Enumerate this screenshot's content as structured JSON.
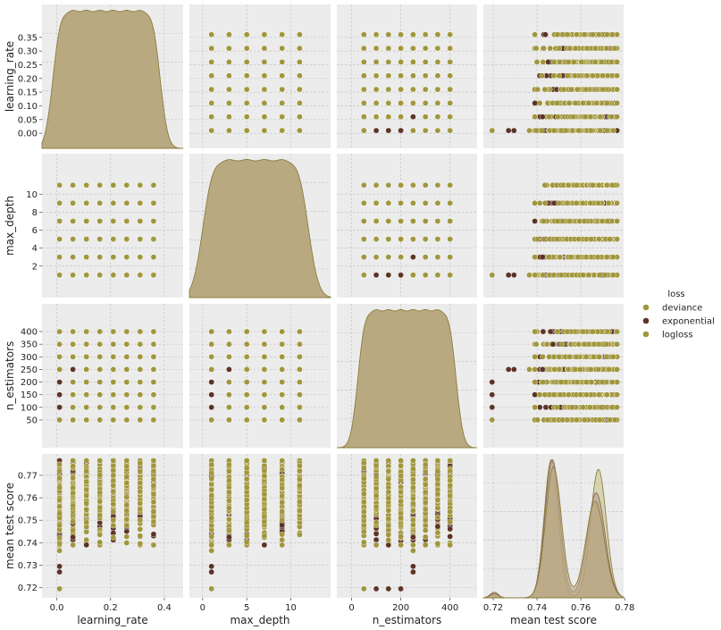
{
  "chart_data": {
    "type": "scatter",
    "kind": "pairplot",
    "variables": [
      {
        "key": "learning_rate",
        "label": "learning_rate",
        "range": [
          -0.055,
          0.47
        ],
        "ticks": [
          0.0,
          0.05,
          0.1,
          0.15,
          0.2,
          0.25,
          0.3,
          0.35
        ],
        "tick_labels_y": [
          "0.00",
          "0.05",
          "0.10",
          "0.15",
          "0.20",
          "0.25",
          "0.30",
          "0.35"
        ],
        "ticks_x": [
          0.0,
          0.2,
          0.4
        ],
        "tick_labels_x": [
          "0.0",
          "0.2",
          "0.4"
        ],
        "values": [
          0.01,
          0.06,
          0.11,
          0.16,
          0.21,
          0.26,
          0.31,
          0.36
        ]
      },
      {
        "key": "max_depth",
        "label": "max_depth",
        "range": [
          -1.5,
          14.5
        ],
        "ticks": [
          2,
          4,
          6,
          8,
          10
        ],
        "tick_labels_y": [
          "2",
          "4",
          "6",
          "8",
          "10"
        ],
        "ticks_x": [
          0,
          5,
          10
        ],
        "tick_labels_x": [
          "0",
          "5",
          "10"
        ],
        "values": [
          1,
          3,
          5,
          7,
          9,
          11
        ]
      },
      {
        "key": "n_estimators",
        "label": "n_estimators",
        "range": [
          -60,
          510
        ],
        "ticks": [
          50,
          100,
          150,
          200,
          250,
          300,
          350,
          400
        ],
        "tick_labels_y": [
          "50",
          "100",
          "150",
          "200",
          "250",
          "300",
          "350",
          "400"
        ],
        "ticks_x": [
          0,
          200,
          400
        ],
        "tick_labels_x": [
          "0",
          "200",
          "400"
        ],
        "values": [
          50,
          100,
          150,
          200,
          250,
          300,
          350,
          400
        ]
      },
      {
        "key": "mean_test_score",
        "label": "mean test score",
        "range": [
          0.7155,
          0.7795
        ],
        "ticks": [
          0.72,
          0.73,
          0.74,
          0.75,
          0.76,
          0.77
        ],
        "tick_labels_y": [
          "0.72",
          "0.73",
          "0.74",
          "0.75",
          "0.76",
          "0.77"
        ],
        "ticks_x": [
          0.72,
          0.74,
          0.76,
          0.78
        ],
        "tick_labels_x": [
          "0.72",
          "0.74",
          "0.76",
          "0.78"
        ]
      }
    ],
    "hue": {
      "title": "loss",
      "levels": [
        {
          "name": "deviance",
          "color": "#a0963c"
        },
        {
          "name": "exponential",
          "color": "#5c3427"
        },
        {
          "name": "logloss",
          "color": "#a0963c"
        }
      ],
      "cloud_color": "#e8d8d0"
    },
    "kde_colors": {
      "fill": "#b5a57b",
      "stroke": "#8d7d3c",
      "alt_fill": "#cfcba0"
    },
    "score_distribution": {
      "min": 0.7195,
      "max": 0.7765,
      "modes": [
        0.747,
        0.768
      ],
      "low_outliers": [
        {
          "loss": "exponential",
          "learning_rate": 0.01,
          "max_depth": 1,
          "n_estimators": 100,
          "score": 0.7195
        },
        {
          "loss": "exponential",
          "learning_rate": 0.01,
          "max_depth": 1,
          "n_estimators": 150,
          "score": 0.7195
        },
        {
          "loss": "exponential",
          "learning_rate": 0.01,
          "max_depth": 1,
          "n_estimators": 200,
          "score": 0.7195
        },
        {
          "loss": "deviance",
          "learning_rate": 0.01,
          "max_depth": 1,
          "n_estimators": 50,
          "score": 0.7195
        },
        {
          "loss": "exponential",
          "learning_rate": 0.01,
          "max_depth": 1,
          "n_estimators": 250,
          "score": 0.7295
        },
        {
          "loss": "exponential",
          "learning_rate": 0.01,
          "max_depth": 1,
          "n_estimators": 250,
          "score": 0.727
        },
        {
          "loss": "deviance",
          "learning_rate": 0.01,
          "max_depth": 1,
          "n_estimators": 250,
          "score": 0.7365
        },
        {
          "loss": "exponential",
          "learning_rate": 0.06,
          "max_depth": 3,
          "n_estimators": 250,
          "score": 0.7425
        },
        {
          "loss": "deviance",
          "learning_rate": 0.06,
          "max_depth": 3,
          "n_estimators": 300,
          "score": 0.7455
        }
      ]
    }
  }
}
